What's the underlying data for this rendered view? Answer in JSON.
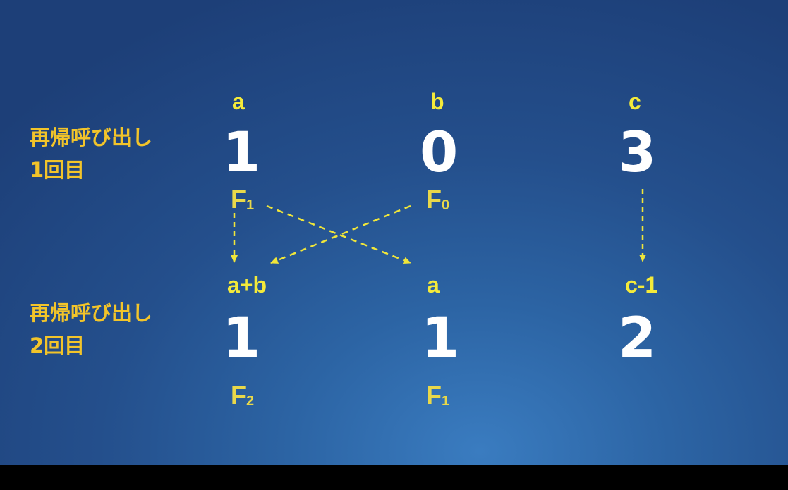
{
  "rows": [
    {
      "label_line1": "再帰呼び出し",
      "label_line2": "1回目",
      "cells": [
        {
          "var": "a",
          "value": "1",
          "fib": "F",
          "fib_sub": "1"
        },
        {
          "var": "b",
          "value": "0",
          "fib": "F",
          "fib_sub": "0"
        },
        {
          "var": "c",
          "value": "3",
          "fib": "",
          "fib_sub": ""
        }
      ]
    },
    {
      "label_line1": "再帰呼び出し",
      "label_line2": "2回目",
      "cells": [
        {
          "var": "a+b",
          "value": "1",
          "fib": "F",
          "fib_sub": "2"
        },
        {
          "var": "a",
          "value": "1",
          "fib": "F",
          "fib_sub": "1"
        },
        {
          "var": "c-1",
          "value": "2",
          "fib": "",
          "fib_sub": ""
        }
      ]
    }
  ],
  "colors": {
    "background": "#2c64a4",
    "variable_text": "#f4ea3a",
    "value_text": "#ffffff",
    "row_label_text": "#f2c42a",
    "arrow": "#f0e63a"
  }
}
